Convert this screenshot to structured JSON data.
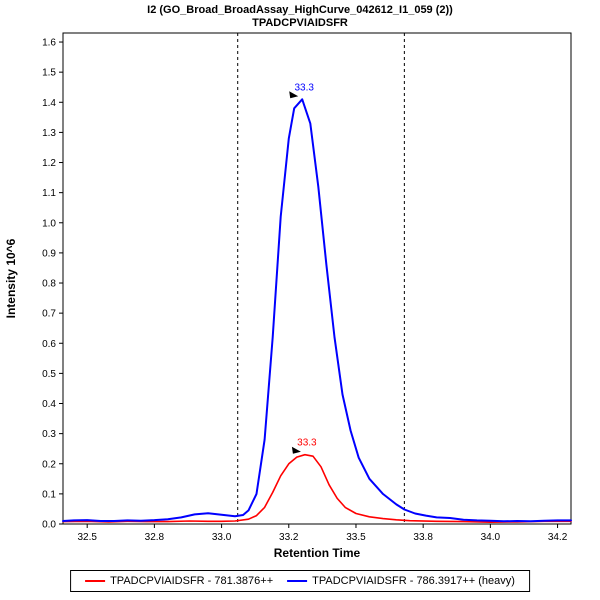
{
  "titles": {
    "line1": "I2 (GO_Broad_BroadAssay_HighCurve_042612_I1_059 (2))",
    "line2": "TPADCPVIAIDSFR"
  },
  "legend": {
    "items": [
      {
        "label": "TPADCPVIAIDSFR - 781.3876++",
        "color": "#FF0000"
      },
      {
        "label": "TPADCPVIAIDSFR - 786.3917++ (heavy)",
        "color": "#0000FF"
      }
    ]
  },
  "chart_data": {
    "type": "line",
    "title": "I2 (GO_Broad_BroadAssay_HighCurve_042612_I1_059 (2))",
    "subtitle": "TPADCPVIAIDSFR",
    "xlabel": "Retention Time",
    "ylabel": "Intensity 10^6",
    "xlim": [
      32.41,
      34.3
    ],
    "ylim": [
      0,
      1.63
    ],
    "grid": false,
    "legend_position": "bottom",
    "boundaries": [
      33.06,
      33.68
    ],
    "x_ticks": [
      {
        "v": 32.5,
        "label": "32.5"
      },
      {
        "v": 32.75,
        "label": "32.8"
      },
      {
        "v": 33.0,
        "label": "33.0"
      },
      {
        "v": 33.25,
        "label": "33.2"
      },
      {
        "v": 33.5,
        "label": "33.5"
      },
      {
        "v": 33.75,
        "label": "33.8"
      },
      {
        "v": 34.0,
        "label": "34.0"
      },
      {
        "v": 34.25,
        "label": "34.2"
      }
    ],
    "y_ticks": [
      {
        "v": 0.0,
        "label": "0.0"
      },
      {
        "v": 0.1,
        "label": "0.1"
      },
      {
        "v": 0.2,
        "label": "0.2"
      },
      {
        "v": 0.3,
        "label": "0.3"
      },
      {
        "v": 0.4,
        "label": "0.4"
      },
      {
        "v": 0.5,
        "label": "0.5"
      },
      {
        "v": 0.6,
        "label": "0.6"
      },
      {
        "v": 0.7,
        "label": "0.7"
      },
      {
        "v": 0.8,
        "label": "0.8"
      },
      {
        "v": 0.9,
        "label": "0.9"
      },
      {
        "v": 1.0,
        "label": "1.0"
      },
      {
        "v": 1.1,
        "label": "1.1"
      },
      {
        "v": 1.2,
        "label": "1.2"
      },
      {
        "v": 1.3,
        "label": "1.3"
      },
      {
        "v": 1.4,
        "label": "1.4"
      },
      {
        "v": 1.5,
        "label": "1.5"
      },
      {
        "v": 1.6,
        "label": "1.6"
      }
    ],
    "series": [
      {
        "name": "TPADCPVIAIDSFR - 781.3876++",
        "color": "#FF0000",
        "peak_annotation": {
          "label": "33.3",
          "x": 33.31,
          "y": 0.23
        },
        "points": [
          [
            32.41,
            0.008
          ],
          [
            32.5,
            0.009
          ],
          [
            32.58,
            0.007
          ],
          [
            32.65,
            0.009
          ],
          [
            32.72,
            0.008
          ],
          [
            32.8,
            0.008
          ],
          [
            32.88,
            0.01
          ],
          [
            32.95,
            0.009
          ],
          [
            33.0,
            0.009
          ],
          [
            33.05,
            0.01
          ],
          [
            33.1,
            0.016
          ],
          [
            33.13,
            0.028
          ],
          [
            33.16,
            0.055
          ],
          [
            33.19,
            0.105
          ],
          [
            33.22,
            0.16
          ],
          [
            33.25,
            0.2
          ],
          [
            33.28,
            0.222
          ],
          [
            33.31,
            0.23
          ],
          [
            33.34,
            0.225
          ],
          [
            33.37,
            0.19
          ],
          [
            33.4,
            0.13
          ],
          [
            33.43,
            0.085
          ],
          [
            33.46,
            0.055
          ],
          [
            33.5,
            0.035
          ],
          [
            33.55,
            0.024
          ],
          [
            33.6,
            0.018
          ],
          [
            33.65,
            0.014
          ],
          [
            33.7,
            0.011
          ],
          [
            33.8,
            0.009
          ],
          [
            33.9,
            0.008
          ],
          [
            34.0,
            0.006
          ],
          [
            34.1,
            0.007
          ],
          [
            34.2,
            0.009
          ],
          [
            34.3,
            0.009
          ]
        ]
      },
      {
        "name": "TPADCPVIAIDSFR - 786.3917++ (heavy)",
        "color": "#0000FF",
        "peak_annotation": {
          "label": "33.3",
          "x": 33.3,
          "y": 1.41
        },
        "points": [
          [
            32.41,
            0.01
          ],
          [
            32.45,
            0.012
          ],
          [
            32.5,
            0.013
          ],
          [
            32.55,
            0.01
          ],
          [
            32.6,
            0.01
          ],
          [
            32.65,
            0.012
          ],
          [
            32.7,
            0.011
          ],
          [
            32.75,
            0.013
          ],
          [
            32.8,
            0.016
          ],
          [
            32.85,
            0.022
          ],
          [
            32.9,
            0.032
          ],
          [
            32.95,
            0.036
          ],
          [
            33.0,
            0.031
          ],
          [
            33.05,
            0.026
          ],
          [
            33.08,
            0.03
          ],
          [
            33.1,
            0.045
          ],
          [
            33.13,
            0.1
          ],
          [
            33.16,
            0.28
          ],
          [
            33.19,
            0.62
          ],
          [
            33.22,
            1.02
          ],
          [
            33.25,
            1.28
          ],
          [
            33.27,
            1.38
          ],
          [
            33.3,
            1.41
          ],
          [
            33.33,
            1.33
          ],
          [
            33.36,
            1.12
          ],
          [
            33.39,
            0.86
          ],
          [
            33.42,
            0.62
          ],
          [
            33.45,
            0.43
          ],
          [
            33.48,
            0.31
          ],
          [
            33.51,
            0.22
          ],
          [
            33.55,
            0.15
          ],
          [
            33.6,
            0.1
          ],
          [
            33.65,
            0.065
          ],
          [
            33.68,
            0.048
          ],
          [
            33.72,
            0.035
          ],
          [
            33.76,
            0.028
          ],
          [
            33.8,
            0.022
          ],
          [
            33.85,
            0.02
          ],
          [
            33.9,
            0.014
          ],
          [
            33.95,
            0.012
          ],
          [
            34.0,
            0.011
          ],
          [
            34.05,
            0.009
          ],
          [
            34.1,
            0.01
          ],
          [
            34.15,
            0.009
          ],
          [
            34.2,
            0.011
          ],
          [
            34.25,
            0.012
          ],
          [
            34.3,
            0.012
          ]
        ]
      }
    ]
  }
}
